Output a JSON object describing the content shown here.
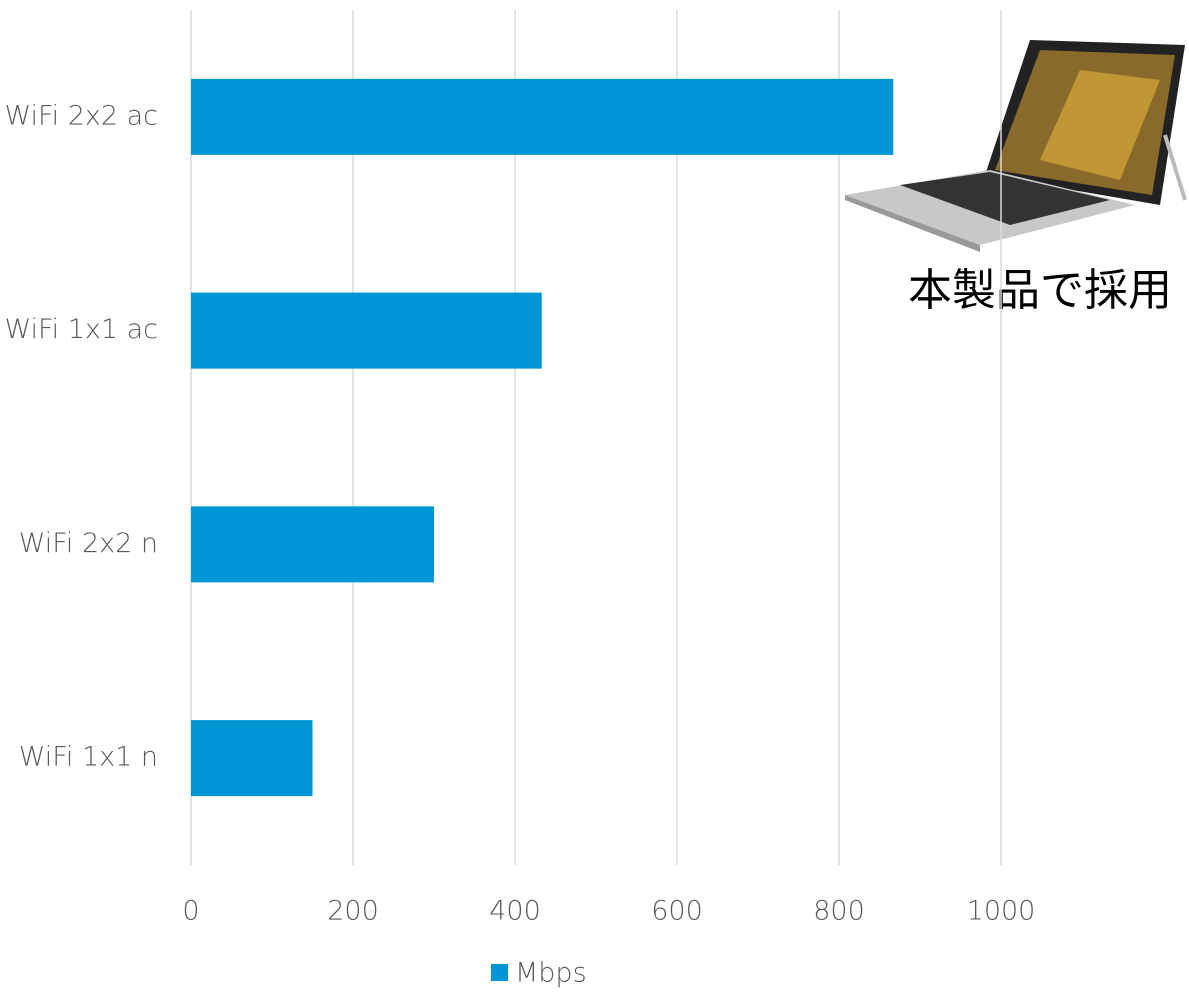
{
  "chart_data": {
    "type": "bar",
    "orientation": "horizontal",
    "categories": [
      "WiFi 2x2 ac",
      "WiFi 1x1 ac",
      "WiFi 2x2 n",
      "WiFi 1x1 n"
    ],
    "series": [
      {
        "name": "Mbps",
        "color": "#0096d6",
        "values": [
          867,
          433,
          300,
          150
        ]
      }
    ],
    "xlim": [
      0,
      1200
    ],
    "xticks": [
      0,
      200,
      400,
      600,
      800,
      1000
    ],
    "grid": true,
    "legend": "bottom",
    "annotation": "本製品で採用"
  }
}
